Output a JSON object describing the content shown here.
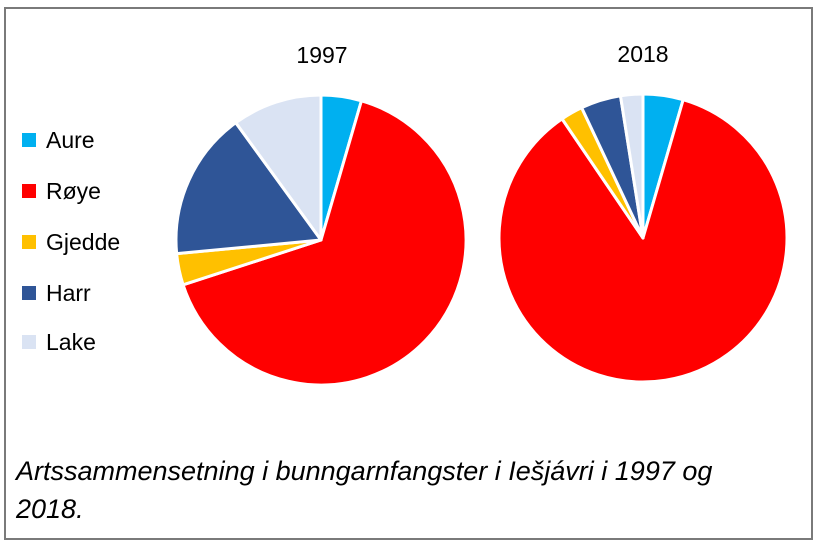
{
  "chart_data": [
    {
      "type": "pie",
      "title": "1997",
      "categories": [
        "Aure",
        "Røye",
        "Gjedde",
        "Harr",
        "Lake"
      ],
      "values": [
        4.5,
        65.5,
        3.5,
        16.5,
        10.0
      ],
      "colors": [
        "#00b0f0",
        "#ff0000",
        "#ffc000",
        "#2f5597",
        "#dae3f3"
      ],
      "legend": "left"
    },
    {
      "type": "pie",
      "title": "2018",
      "categories": [
        "Aure",
        "Røye",
        "Gjedde",
        "Harr",
        "Lake"
      ],
      "values": [
        4.5,
        86.0,
        2.5,
        4.5,
        2.5
      ],
      "colors": [
        "#00b0f0",
        "#ff0000",
        "#ffc000",
        "#2f5597",
        "#dae3f3"
      ],
      "legend": "left"
    }
  ],
  "legend": {
    "items": [
      {
        "label": "Aure",
        "color": "#00b0f0"
      },
      {
        "label": "Røye",
        "color": "#ff0000"
      },
      {
        "label": "Gjedde",
        "color": "#ffc000"
      },
      {
        "label": "Harr",
        "color": "#2f5597"
      },
      {
        "label": "Lake",
        "color": "#dae3f3"
      }
    ]
  },
  "caption": "Artssammensetning i bunngarnfangster i Iešjávri i 1997 og 2018."
}
